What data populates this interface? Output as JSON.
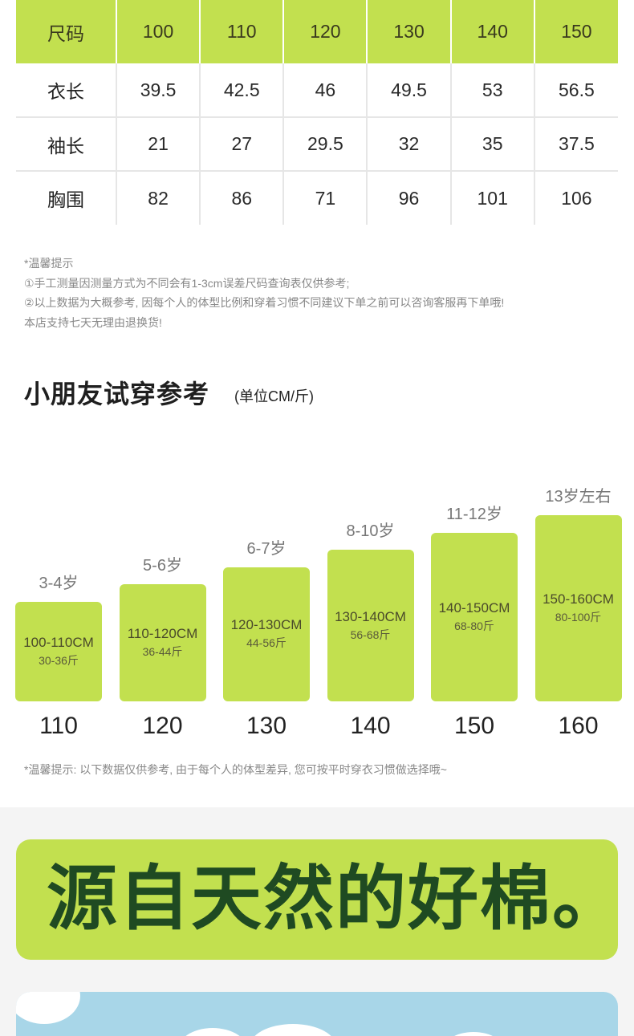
{
  "size_table": {
    "header": [
      "尺码",
      "100",
      "110",
      "120",
      "130",
      "140",
      "150"
    ],
    "rows": [
      {
        "label": "衣长",
        "values": [
          "39.5",
          "42.5",
          "46",
          "49.5",
          "53",
          "56.5"
        ]
      },
      {
        "label": "袖长",
        "values": [
          "21",
          "27",
          "29.5",
          "32",
          "35",
          "37.5"
        ]
      },
      {
        "label": "胸围",
        "values": [
          "82",
          "86",
          "71",
          "96",
          "101",
          "106"
        ]
      }
    ]
  },
  "notes": {
    "title": "*温馨提示",
    "line1": "①手工测量因测量方式为不同会有1-3cm误差尺码查询表仅供参考;",
    "line2": "②以上数据为大概参考, 因每个人的体型比例和穿着习惯不同建议下单之前可以咨询客服再下单哦!",
    "line3": "本店支持七天无理由退换货!"
  },
  "section": {
    "title": "小朋友试穿参考",
    "unit": "(单位CM/斤)"
  },
  "chart_data": {
    "type": "bar",
    "categories": [
      "110",
      "120",
      "130",
      "140",
      "150",
      "160"
    ],
    "ages": [
      "3-4岁",
      "5-6岁",
      "6-7岁",
      "8-10岁",
      "11-12岁",
      "13岁左右"
    ],
    "heights": [
      "100-110CM",
      "110-120CM",
      "120-130CM",
      "130-140CM",
      "140-150CM",
      "150-160CM"
    ],
    "weights": [
      "30-36斤",
      "36-44斤",
      "44-56斤",
      "56-68斤",
      "68-80斤",
      "80-100斤"
    ],
    "values": [
      110,
      120,
      130,
      140,
      150,
      160
    ]
  },
  "tip2": "*温馨提示: 以下数据仅供参考, 由于每个人的体型差异, 您可按平时穿衣习惯做选择哦~",
  "slogan": "源自天然的好棉。",
  "colors": {
    "accent": "#c2e04f",
    "slogan_text": "#1f4a22",
    "panel_blue": "#a8d6e8"
  }
}
